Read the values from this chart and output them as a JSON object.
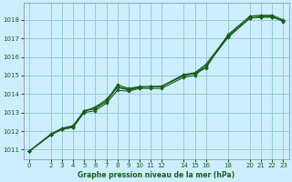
{
  "title": "Graphe pression niveau de la mer (hPa)",
  "bg_color": "#cceeff",
  "grid_color": "#99cccc",
  "line_color": "#1a5e1a",
  "marker_color": "#1a5e1a",
  "xlim": [
    -0.5,
    23.5
  ],
  "ylim": [
    1010.5,
    1018.9
  ],
  "xticks": [
    0,
    2,
    3,
    4,
    5,
    6,
    7,
    8,
    9,
    10,
    11,
    12,
    14,
    15,
    16,
    18,
    20,
    21,
    22,
    23
  ],
  "yticks": [
    1011,
    1012,
    1013,
    1014,
    1015,
    1016,
    1017,
    1018
  ],
  "series": [
    {
      "x": [
        0,
        2,
        3,
        4,
        5,
        6,
        7,
        8,
        9,
        10,
        11,
        12,
        14,
        15,
        16,
        18,
        20,
        21,
        22,
        23
      ],
      "y": [
        1010.9,
        1011.8,
        1012.1,
        1012.2,
        1013.1,
        1013.2,
        1013.6,
        1014.5,
        1014.3,
        1014.4,
        1014.4,
        1014.4,
        1015.0,
        1015.1,
        1015.4,
        1017.2,
        1018.2,
        1018.25,
        1018.25,
        1018.0
      ]
    },
    {
      "x": [
        0,
        2,
        3,
        4,
        5,
        6,
        7,
        8,
        9,
        10,
        11,
        12,
        14,
        15,
        16,
        18,
        20,
        21,
        22,
        23
      ],
      "y": [
        1010.9,
        1011.8,
        1012.1,
        1012.2,
        1013.0,
        1013.1,
        1013.5,
        1014.2,
        1014.15,
        1014.3,
        1014.3,
        1014.3,
        1014.9,
        1015.0,
        1015.5,
        1017.1,
        1018.1,
        1018.15,
        1018.15,
        1017.95
      ]
    },
    {
      "x": [
        0,
        2,
        3,
        4,
        5,
        6,
        7,
        8,
        9,
        10,
        11,
        12,
        14,
        15,
        16,
        18,
        20,
        21,
        22,
        23
      ],
      "y": [
        1010.9,
        1011.85,
        1012.15,
        1012.25,
        1013.05,
        1013.3,
        1013.7,
        1014.4,
        1014.25,
        1014.38,
        1014.38,
        1014.42,
        1015.05,
        1015.15,
        1015.6,
        1017.15,
        1018.2,
        1018.2,
        1018.2,
        1017.9
      ]
    },
    {
      "x": [
        0,
        2,
        3,
        4,
        5,
        6,
        7,
        8,
        9,
        10,
        11,
        12,
        14,
        15,
        16,
        18,
        20,
        21,
        22,
        23
      ],
      "y": [
        1010.9,
        1011.82,
        1012.15,
        1012.3,
        1013.1,
        1013.25,
        1013.6,
        1014.35,
        1014.22,
        1014.35,
        1014.4,
        1014.4,
        1015.0,
        1015.12,
        1015.5,
        1017.05,
        1018.1,
        1018.15,
        1018.15,
        1017.93
      ]
    }
  ]
}
